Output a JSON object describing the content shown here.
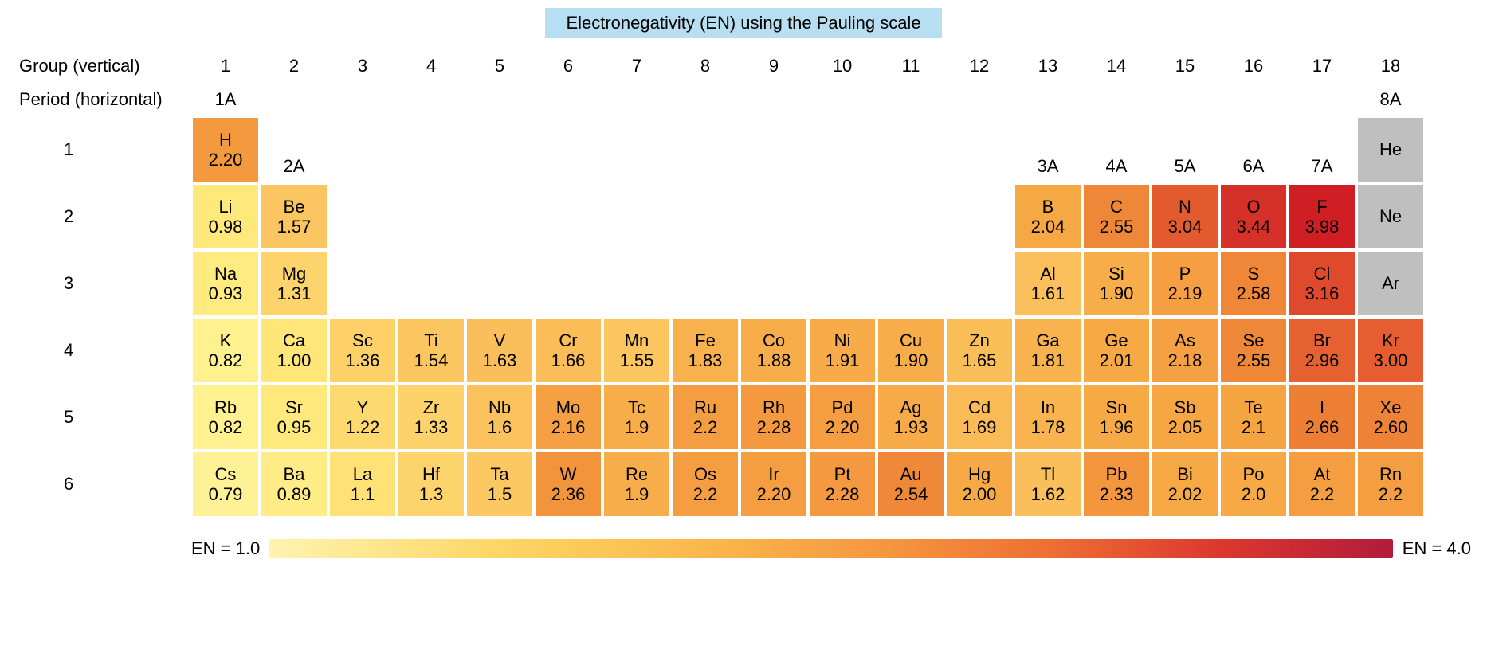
{
  "title": "Electronegativity (EN) using the Pauling scale",
  "title_bg": "#b8def2",
  "labels": {
    "group": "Group (vertical)",
    "period": "Period (horizontal)"
  },
  "scale": {
    "low_label": "EN = 1.0",
    "high_label": "EN = 4.0",
    "stops": [
      {
        "pct": 0,
        "color": "#fff3b0"
      },
      {
        "pct": 20,
        "color": "#fdd766"
      },
      {
        "pct": 40,
        "color": "#fab54a"
      },
      {
        "pct": 55,
        "color": "#f59640"
      },
      {
        "pct": 70,
        "color": "#ed6d33"
      },
      {
        "pct": 85,
        "color": "#dc362e"
      },
      {
        "pct": 100,
        "color": "#b11c3b"
      }
    ]
  },
  "groups": {
    "numbers": [
      "1",
      "2",
      "3",
      "4",
      "5",
      "6",
      "7",
      "8",
      "9",
      "10",
      "11",
      "12",
      "13",
      "14",
      "15",
      "16",
      "17",
      "18"
    ],
    "sub": {
      "1": "1A",
      "2": "2A",
      "13": "3A",
      "14": "4A",
      "15": "5A",
      "16": "6A",
      "17": "7A",
      "18": "8A"
    },
    "sub_row": {
      "1": 1,
      "2": 2,
      "13": 2,
      "14": 2,
      "15": 2,
      "16": 2,
      "17": 2,
      "18": 1
    }
  },
  "periods": [
    "1",
    "2",
    "3",
    "4",
    "5",
    "6"
  ],
  "cell_gap_color": "#ffffff",
  "noble_color": "#bfbfbf",
  "text_color": "#000000",
  "font_size_cell": 22,
  "elements": [
    {
      "p": 1,
      "g": 1,
      "sym": "H",
      "en": "2.20",
      "c": "#f39a3e"
    },
    {
      "p": 1,
      "g": 18,
      "sym": "He",
      "en": "",
      "c": "#bfbfbf"
    },
    {
      "p": 2,
      "g": 1,
      "sym": "Li",
      "en": "0.98",
      "c": "#ffe97a"
    },
    {
      "p": 2,
      "g": 2,
      "sym": "Be",
      "en": "1.57",
      "c": "#fbc562"
    },
    {
      "p": 2,
      "g": 13,
      "sym": "B",
      "en": "2.04",
      "c": "#f6a844"
    },
    {
      "p": 2,
      "g": 14,
      "sym": "C",
      "en": "2.55",
      "c": "#ef8738"
    },
    {
      "p": 2,
      "g": 15,
      "sym": "N",
      "en": "3.04",
      "c": "#e35a2f"
    },
    {
      "p": 2,
      "g": 16,
      "sym": "O",
      "en": "3.44",
      "c": "#d63128"
    },
    {
      "p": 2,
      "g": 17,
      "sym": "F",
      "en": "3.98",
      "c": "#cf1f24"
    },
    {
      "p": 2,
      "g": 18,
      "sym": "Ne",
      "en": "",
      "c": "#bfbfbf"
    },
    {
      "p": 3,
      "g": 1,
      "sym": "Na",
      "en": "0.93",
      "c": "#ffeb80"
    },
    {
      "p": 3,
      "g": 2,
      "sym": "Mg",
      "en": "1.31",
      "c": "#fdd46c"
    },
    {
      "p": 3,
      "g": 13,
      "sym": "Al",
      "en": "1.61",
      "c": "#fbc05c"
    },
    {
      "p": 3,
      "g": 14,
      "sym": "Si",
      "en": "1.90",
      "c": "#f7ad49"
    },
    {
      "p": 3,
      "g": 15,
      "sym": "P",
      "en": "2.19",
      "c": "#f59f42"
    },
    {
      "p": 3,
      "g": 16,
      "sym": "S",
      "en": "2.58",
      "c": "#ef8638"
    },
    {
      "p": 3,
      "g": 17,
      "sym": "Cl",
      "en": "3.16",
      "c": "#df4a2c"
    },
    {
      "p": 3,
      "g": 18,
      "sym": "Ar",
      "en": "",
      "c": "#bfbfbf"
    },
    {
      "p": 4,
      "g": 1,
      "sym": "K",
      "en": "0.82",
      "c": "#fff090"
    },
    {
      "p": 4,
      "g": 2,
      "sym": "Ca",
      "en": "1.00",
      "c": "#ffe679"
    },
    {
      "p": 4,
      "g": 3,
      "sym": "Sc",
      "en": "1.36",
      "c": "#fdd168"
    },
    {
      "p": 4,
      "g": 4,
      "sym": "Ti",
      "en": "1.54",
      "c": "#fbc560"
    },
    {
      "p": 4,
      "g": 5,
      "sym": "V",
      "en": "1.63",
      "c": "#fabf5a"
    },
    {
      "p": 4,
      "g": 6,
      "sym": "Cr",
      "en": "1.66",
      "c": "#fabd58"
    },
    {
      "p": 4,
      "g": 7,
      "sym": "Mn",
      "en": "1.55",
      "c": "#fbc560"
    },
    {
      "p": 4,
      "g": 8,
      "sym": "Fe",
      "en": "1.83",
      "c": "#f8b14d"
    },
    {
      "p": 4,
      "g": 9,
      "sym": "Co",
      "en": "1.88",
      "c": "#f7ae4a"
    },
    {
      "p": 4,
      "g": 10,
      "sym": "Ni",
      "en": "1.91",
      "c": "#f7ac49"
    },
    {
      "p": 4,
      "g": 11,
      "sym": "Cu",
      "en": "1.90",
      "c": "#f7ad49"
    },
    {
      "p": 4,
      "g": 12,
      "sym": "Zn",
      "en": "1.65",
      "c": "#fabe59"
    },
    {
      "p": 4,
      "g": 13,
      "sym": "Ga",
      "en": "1.81",
      "c": "#f8b24e"
    },
    {
      "p": 4,
      "g": 14,
      "sym": "Ge",
      "en": "2.01",
      "c": "#f6a945"
    },
    {
      "p": 4,
      "g": 15,
      "sym": "As",
      "en": "2.18",
      "c": "#f5a042"
    },
    {
      "p": 4,
      "g": 16,
      "sym": "Se",
      "en": "2.55",
      "c": "#ef8738"
    },
    {
      "p": 4,
      "g": 17,
      "sym": "Br",
      "en": "2.96",
      "c": "#e66131"
    },
    {
      "p": 4,
      "g": 18,
      "sym": "Kr",
      "en": "3.00",
      "c": "#e55d30"
    },
    {
      "p": 5,
      "g": 1,
      "sym": "Rb",
      "en": "0.82",
      "c": "#fff090"
    },
    {
      "p": 5,
      "g": 2,
      "sym": "Sr",
      "en": "0.95",
      "c": "#ffe87c"
    },
    {
      "p": 5,
      "g": 3,
      "sym": "Y",
      "en": "1.22",
      "c": "#fed970"
    },
    {
      "p": 5,
      "g": 4,
      "sym": "Zr",
      "en": "1.33",
      "c": "#fdd26a"
    },
    {
      "p": 5,
      "g": 5,
      "sym": "Nb",
      "en": "1.6",
      "c": "#fbc15c"
    },
    {
      "p": 5,
      "g": 6,
      "sym": "Mo",
      "en": "2.16",
      "c": "#f5a143"
    },
    {
      "p": 5,
      "g": 7,
      "sym": "Tc",
      "en": "1.9",
      "c": "#f7ad49"
    },
    {
      "p": 5,
      "g": 8,
      "sym": "Ru",
      "en": "2.2",
      "c": "#f59e41"
    },
    {
      "p": 5,
      "g": 9,
      "sym": "Rh",
      "en": "2.28",
      "c": "#f4993f"
    },
    {
      "p": 5,
      "g": 10,
      "sym": "Pd",
      "en": "2.20",
      "c": "#f59e41"
    },
    {
      "p": 5,
      "g": 11,
      "sym": "Ag",
      "en": "1.93",
      "c": "#f7ab48"
    },
    {
      "p": 5,
      "g": 12,
      "sym": "Cd",
      "en": "1.69",
      "c": "#fabb56"
    },
    {
      "p": 5,
      "g": 13,
      "sym": "In",
      "en": "1.78",
      "c": "#f9b450"
    },
    {
      "p": 5,
      "g": 14,
      "sym": "Sn",
      "en": "1.96",
      "c": "#f6aa46"
    },
    {
      "p": 5,
      "g": 15,
      "sym": "Sb",
      "en": "2.05",
      "c": "#f6a744"
    },
    {
      "p": 5,
      "g": 16,
      "sym": "Te",
      "en": "2.1",
      "c": "#f5a442"
    },
    {
      "p": 5,
      "g": 17,
      "sym": "I",
      "en": "2.66",
      "c": "#ed7f35"
    },
    {
      "p": 5,
      "g": 18,
      "sym": "Xe",
      "en": "2.60",
      "c": "#ee8337"
    },
    {
      "p": 6,
      "g": 1,
      "sym": "Cs",
      "en": "0.79",
      "c": "#fff296"
    },
    {
      "p": 6,
      "g": 2,
      "sym": "Ba",
      "en": "0.89",
      "c": "#ffec86"
    },
    {
      "p": 6,
      "g": 3,
      "sym": "La",
      "en": "1.1",
      "c": "#ffe176"
    },
    {
      "p": 6,
      "g": 4,
      "sym": "Hf",
      "en": "1.3",
      "c": "#fdd46b"
    },
    {
      "p": 6,
      "g": 5,
      "sym": "Ta",
      "en": "1.5",
      "c": "#fcc862"
    },
    {
      "p": 6,
      "g": 6,
      "sym": "W",
      "en": "2.36",
      "c": "#f2943c"
    },
    {
      "p": 6,
      "g": 7,
      "sym": "Re",
      "en": "1.9",
      "c": "#f7ad49"
    },
    {
      "p": 6,
      "g": 8,
      "sym": "Os",
      "en": "2.2",
      "c": "#f59e41"
    },
    {
      "p": 6,
      "g": 9,
      "sym": "Ir",
      "en": "2.20",
      "c": "#f59e41"
    },
    {
      "p": 6,
      "g": 10,
      "sym": "Pt",
      "en": "2.28",
      "c": "#f4993f"
    },
    {
      "p": 6,
      "g": 11,
      "sym": "Au",
      "en": "2.54",
      "c": "#ef8838"
    },
    {
      "p": 6,
      "g": 12,
      "sym": "Hg",
      "en": "2.00",
      "c": "#f6a945"
    },
    {
      "p": 6,
      "g": 13,
      "sym": "Tl",
      "en": "1.62",
      "c": "#fabf5b"
    },
    {
      "p": 6,
      "g": 14,
      "sym": "Pb",
      "en": "2.33",
      "c": "#f3963d"
    },
    {
      "p": 6,
      "g": 15,
      "sym": "Bi",
      "en": "2.02",
      "c": "#f6a845"
    },
    {
      "p": 6,
      "g": 16,
      "sym": "Po",
      "en": "2.0",
      "c": "#f6a945"
    },
    {
      "p": 6,
      "g": 17,
      "sym": "At",
      "en": "2.2",
      "c": "#f59e41"
    },
    {
      "p": 6,
      "g": 18,
      "sym": "Rn",
      "en": "2.2",
      "c": "#f59e41"
    }
  ]
}
